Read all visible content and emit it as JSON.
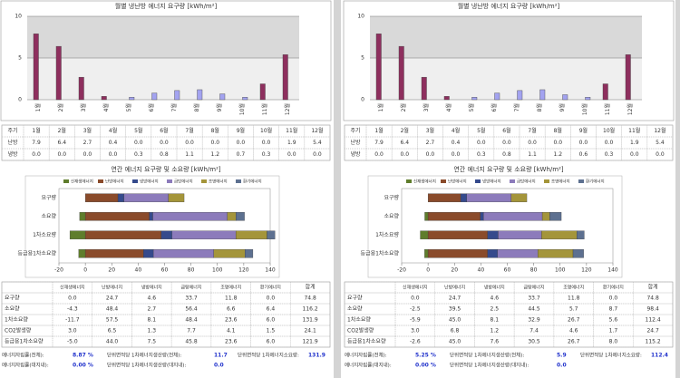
{
  "panels": [
    {
      "monthly": {
        "type": "bar",
        "title": "월별 냉난방 에너지 요구량 [kWh/m²]",
        "categories": [
          "1월",
          "2월",
          "3월",
          "4월",
          "5월",
          "6월",
          "7월",
          "8월",
          "9월",
          "10월",
          "11월",
          "12월"
        ],
        "series": [
          {
            "name": "난방",
            "color": "#8e2f5e",
            "values": [
              7.9,
              6.4,
              2.7,
              0.4,
              0.0,
              0.0,
              0.0,
              0.0,
              0.0,
              0.0,
              1.9,
              5.4
            ],
            "value_labels": [
              "7.9",
              "6.4",
              "2.7",
              "0.4",
              "0.0",
              "0.0",
              "0.0",
              "0.0",
              "0.0",
              "0.0",
              "1.9",
              "5.4"
            ]
          },
          {
            "name": "냉방",
            "color": "#a3a3f0",
            "values": [
              0.0,
              0.0,
              0.0,
              0.0,
              0.3,
              0.8,
              1.1,
              1.2,
              0.7,
              0.3,
              0.0,
              0.0
            ],
            "value_labels": [
              "0.0",
              "0.0",
              "0.0",
              "0.0",
              "0.3",
              "0.8",
              "1.1",
              "1.2",
              "0.7",
              "0.3",
              "0.0",
              "0.0"
            ]
          }
        ],
        "ylim": [
          0,
          10
        ],
        "yticks": [
          0,
          5,
          10
        ],
        "grid": true,
        "table_header": "주기"
      },
      "annual": {
        "type": "stacked_barh",
        "title": "연간 에너지 요구량 및 소요량 [kWh/m²]",
        "categories": [
          "요구량",
          "소요량",
          "1차소요량",
          "등급용1차소요량"
        ],
        "series": [
          {
            "name": "신재생에너지",
            "color": "#5f7d2c",
            "values": [
              0.0,
              -4.3,
              -11.7,
              -5.0
            ]
          },
          {
            "name": "난방에너지",
            "color": "#8a4b2b",
            "values": [
              24.7,
              48.4,
              57.5,
              44.0
            ]
          },
          {
            "name": "냉방에너지",
            "color": "#354a8c",
            "values": [
              4.6,
              2.7,
              8.1,
              7.5
            ]
          },
          {
            "name": "급탕에너지",
            "color": "#8c7bbb",
            "values": [
              33.7,
              56.4,
              48.4,
              45.8
            ]
          },
          {
            "name": "조명에너지",
            "color": "#a4953a",
            "values": [
              11.8,
              6.6,
              23.6,
              23.6
            ]
          },
          {
            "name": "환기에너지",
            "color": "#5d7090",
            "values": [
              0.0,
              6.4,
              6.0,
              6.0
            ]
          }
        ],
        "xlim": [
          -20,
          140
        ],
        "xticks": [
          -20,
          0,
          20,
          40,
          60,
          80,
          100,
          120,
          140
        ]
      },
      "annual_table": {
        "total_header": "합계",
        "rows": [
          {
            "label": "요구량",
            "cells": [
              "0.0",
              "24.7",
              "4.6",
              "33.7",
              "11.8",
              "0.0",
              "74.8"
            ]
          },
          {
            "label": "소요량",
            "cells": [
              "-4.3",
              "48.4",
              "2.7",
              "56.4",
              "6.6",
              "6.4",
              "116.2"
            ]
          },
          {
            "label": "1차소요량",
            "cells": [
              "-11.7",
              "57.5",
              "8.1",
              "48.4",
              "23.6",
              "6.0",
              "131.9"
            ]
          },
          {
            "label": "CO2발생량",
            "cells": [
              "3.0",
              "6.5",
              "1.3",
              "7.7",
              "4.1",
              "1.5",
              "24.1"
            ]
          },
          {
            "label": "등급용1차소요량",
            "cells": [
              "-5.0",
              "44.0",
              "7.5",
              "45.8",
              "23.6",
              "6.0",
              "121.9"
            ]
          }
        ]
      },
      "footer": [
        [
          {
            "label": "에너지자립률(전체):",
            "value": "8.87 %"
          },
          {
            "label": "단위면적당 1차에너지생산량(전체):",
            "value": "11.7"
          },
          {
            "label": "단위면적당 1차에너지소요량:",
            "value": "131.9"
          }
        ],
        [
          {
            "label": "에너지자립률(대지내):",
            "value": "0.00 %"
          },
          {
            "label": "단위면적당 1차에너지생산량(대지내):",
            "value": "0.0"
          }
        ]
      ]
    },
    {
      "monthly": {
        "type": "bar",
        "title": "월별 냉난방 에너지 요구량 [kWh/m²]",
        "categories": [
          "1월",
          "2월",
          "3월",
          "4월",
          "5월",
          "6월",
          "7월",
          "8월",
          "9월",
          "10월",
          "11월",
          "12월"
        ],
        "series": [
          {
            "name": "난방",
            "color": "#8e2f5e",
            "values": [
              7.9,
              6.4,
              2.7,
              0.4,
              0.0,
              0.0,
              0.0,
              0.0,
              0.0,
              0.0,
              1.9,
              5.4
            ],
            "value_labels": [
              "7.9",
              "6.4",
              "2.7",
              "0.4",
              "0.0",
              "0.0",
              "0.0",
              "0.0",
              "0.0",
              "0.0",
              "1.9",
              "5.4"
            ]
          },
          {
            "name": "냉방",
            "color": "#a3a3f0",
            "values": [
              0.0,
              0.0,
              0.0,
              0.0,
              0.3,
              0.8,
              1.1,
              1.2,
              0.6,
              0.3,
              0.0,
              0.0
            ],
            "value_labels": [
              "0.0",
              "0.0",
              "0.0",
              "0.0",
              "0.3",
              "0.8",
              "1.1",
              "1.2",
              "0.6",
              "0.3",
              "0.0",
              "0.0"
            ]
          }
        ],
        "ylim": [
          0,
          10
        ],
        "yticks": [
          0,
          5,
          10
        ],
        "grid": true,
        "table_header": "주기"
      },
      "annual": {
        "type": "stacked_barh",
        "title": "연간 에너지 요구량 및 소요량 [kWh/m²]",
        "categories": [
          "요구량",
          "소요량",
          "1차소요량",
          "등급용1차소요량"
        ],
        "series": [
          {
            "name": "신재생에너지",
            "color": "#5f7d2c",
            "values": [
              0.0,
              -2.5,
              -5.9,
              -2.6
            ]
          },
          {
            "name": "난방에너지",
            "color": "#8a4b2b",
            "values": [
              24.7,
              39.5,
              45.0,
              45.0
            ]
          },
          {
            "name": "냉방에너지",
            "color": "#354a8c",
            "values": [
              4.6,
              2.5,
              8.1,
              7.6
            ]
          },
          {
            "name": "급탕에너지",
            "color": "#8c7bbb",
            "values": [
              33.7,
              44.5,
              32.9,
              30.5
            ]
          },
          {
            "name": "조명에너지",
            "color": "#a4953a",
            "values": [
              11.8,
              5.7,
              26.7,
              26.7
            ]
          },
          {
            "name": "환기에너지",
            "color": "#5d7090",
            "values": [
              0.0,
              8.7,
              5.6,
              8.0
            ]
          }
        ],
        "xlim": [
          -20,
          140
        ],
        "xticks": [
          -20,
          0,
          20,
          40,
          60,
          80,
          100,
          120,
          140
        ]
      },
      "annual_table": {
        "total_header": "합계",
        "rows": [
          {
            "label": "요구량",
            "cells": [
              "0.0",
              "24.7",
              "4.6",
              "33.7",
              "11.8",
              "0.0",
              "74.8"
            ]
          },
          {
            "label": "소요량",
            "cells": [
              "-2.5",
              "39.5",
              "2.5",
              "44.5",
              "5.7",
              "8.7",
              "98.4"
            ]
          },
          {
            "label": "1차소요량",
            "cells": [
              "-5.9",
              "45.0",
              "8.1",
              "32.9",
              "26.7",
              "5.6",
              "112.4"
            ]
          },
          {
            "label": "CO2발생량",
            "cells": [
              "3.0",
              "6.8",
              "1.2",
              "7.4",
              "4.6",
              "1.7",
              "24.7"
            ]
          },
          {
            "label": "등급용1차소요량",
            "cells": [
              "-2.6",
              "45.0",
              "7.6",
              "30.5",
              "26.7",
              "8.0",
              "115.2"
            ]
          }
        ]
      },
      "footer": [
        [
          {
            "label": "에너지자립률(전체):",
            "value": "5.25 %"
          },
          {
            "label": "단위면적당 1차에너지생산량(전체):",
            "value": "5.9"
          },
          {
            "label": "단위면적당 1차에너지소요량:",
            "value": "112.4"
          }
        ],
        [
          {
            "label": "에너지자립률(대지내):",
            "value": "0.00 %"
          },
          {
            "label": "단위면적당 1차에너지생산량(대지내):",
            "value": "0.0"
          }
        ]
      ]
    }
  ]
}
